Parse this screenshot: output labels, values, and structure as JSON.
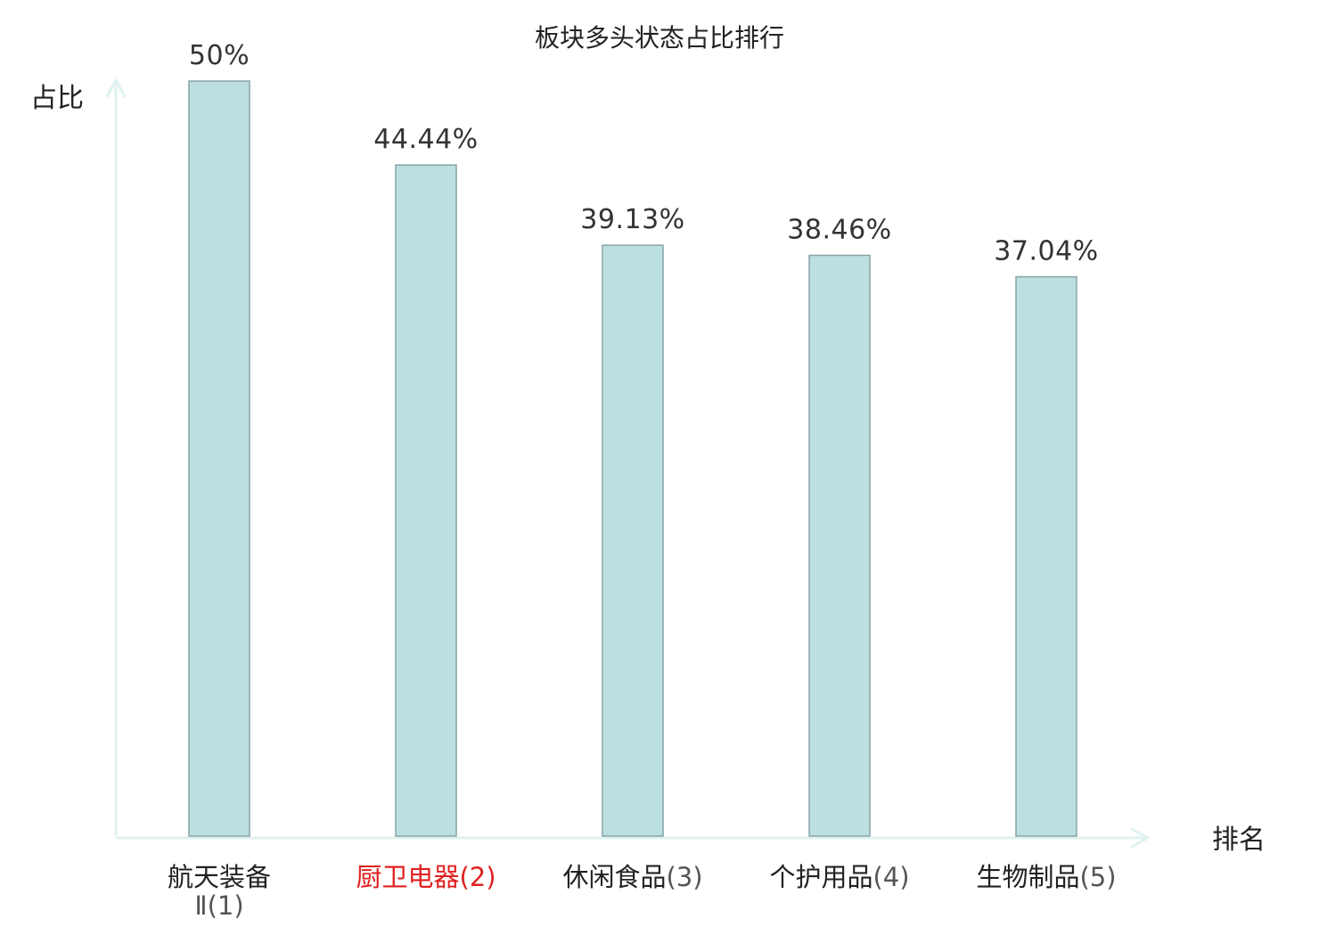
{
  "chart_data": {
    "type": "bar",
    "title": "板块多头状态占比排行",
    "xlabel": "排名",
    "ylabel": "占比",
    "ylim": [
      0,
      50
    ],
    "grid": false,
    "highlight_color": "#e02020",
    "label_color": "#222222",
    "rank_color": "#555555",
    "bar_fill": "#bce0e2",
    "bar_stroke": "#86a4a6",
    "axis_color": "#dff2ef",
    "categories": [
      {
        "name": "航天装备",
        "name_line2": "Ⅱ",
        "rank": "(1)",
        "highlight": false
      },
      {
        "name": "厨卫电器",
        "rank": "(2)",
        "highlight": true
      },
      {
        "name": "休闲食品",
        "rank": "(3)",
        "highlight": false
      },
      {
        "name": "个护用品",
        "rank": "(4)",
        "highlight": false
      },
      {
        "name": "生物制品",
        "rank": "(5)",
        "highlight": false
      }
    ],
    "values": [
      50,
      44.44,
      39.13,
      38.46,
      37.04
    ],
    "value_labels": [
      "50%",
      "44.44%",
      "39.13%",
      "38.46%",
      "37.04%"
    ]
  }
}
